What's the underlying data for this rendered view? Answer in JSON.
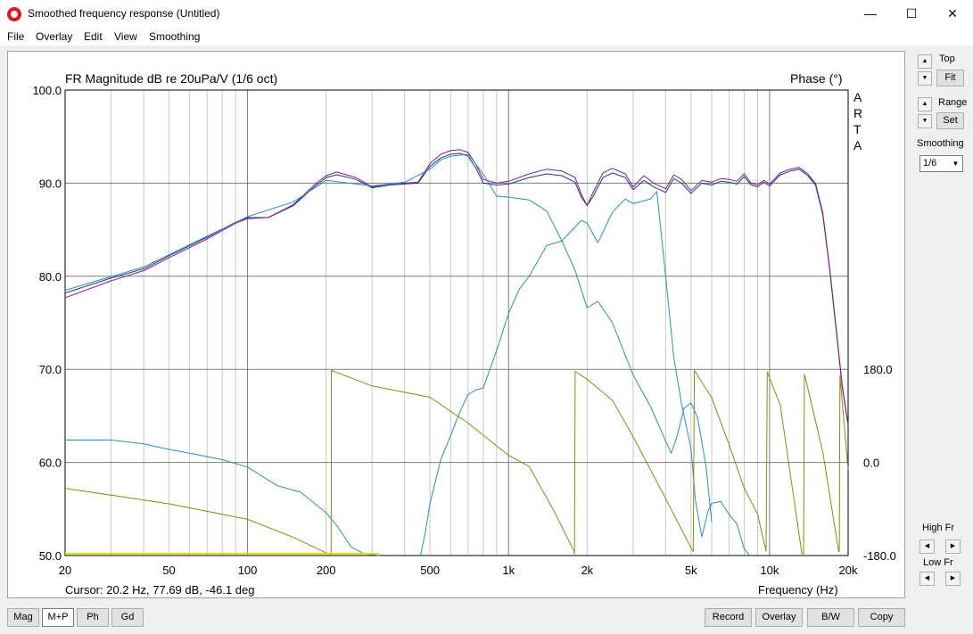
{
  "window": {
    "title": "Smoothed frequency response (Untitled)",
    "minimize_glyph": "—",
    "maximize_glyph": "☐",
    "close_glyph": "✕"
  },
  "menu": [
    "File",
    "Overlay",
    "Edit",
    "View",
    "Smoothing"
  ],
  "side": {
    "top_label": "Top",
    "fit_label": "Fit",
    "range_label": "Range",
    "set_label": "Set",
    "smoothing_label": "Smoothing",
    "smoothing_value": "1/6",
    "high_fr_label": "High Fr",
    "low_fr_label": "Low Fr"
  },
  "buttons_left": [
    "Mag",
    "M+P",
    "Ph",
    "Gd"
  ],
  "buttons_right": [
    "Record",
    "Overlay",
    "B/W",
    "Copy"
  ],
  "chart_data": {
    "type": "line",
    "title": "FR Magnitude dB re 20uPa/V (1/6 oct)",
    "y2_title": "Phase (°)",
    "brand": [
      "A",
      "R",
      "T",
      "A"
    ],
    "xlabel": "Frequency (Hz)",
    "xscale": "log",
    "xlim": [
      20,
      20000
    ],
    "ylim": [
      50,
      100
    ],
    "y2lim": [
      -180,
      180
    ],
    "x_ticks": [
      20,
      50,
      100,
      200,
      500,
      1000,
      2000,
      5000,
      10000,
      20000
    ],
    "x_tick_labels": [
      "20",
      "50",
      "100",
      "200",
      "500",
      "1k",
      "2k",
      "5k",
      "10k",
      "20k"
    ],
    "y_ticks": [
      100,
      90,
      80,
      70,
      60,
      50
    ],
    "y_tick_labels": [
      "100.0",
      "90.0",
      "80.0",
      "70.0",
      "60.0",
      "50.0"
    ],
    "y2_ticks": [
      180,
      0,
      -180
    ],
    "y2_tick_labels": [
      "180.0",
      "0.0",
      "-180.0"
    ],
    "cursor": "Cursor: 20.2 Hz, 77.69 dB, -46.1 deg",
    "colors": {
      "sum": "#1f3a8a",
      "sum2": "#8b1a7a",
      "driver": "#2a8fb8",
      "phase": "#8a8a10",
      "marker": "#e0e000"
    },
    "series": [
      {
        "axis": "y",
        "color": "#1f3a8a",
        "x": [
          20,
          30,
          40,
          50,
          70,
          90,
          100,
          120,
          150,
          180,
          200,
          220,
          260,
          300,
          350,
          400,
          450,
          500,
          550,
          600,
          650,
          700,
          750,
          800,
          900,
          1000,
          1200,
          1400,
          1600,
          1800,
          1900,
          2000,
          2100,
          2300,
          2500,
          2800,
          3000,
          3300,
          3600,
          4000,
          4300,
          4600,
          5000,
          5500,
          6000,
          6500,
          7000,
          7500,
          8000,
          8500,
          9000,
          9500,
          10000,
          11000,
          12000,
          13000,
          14000,
          15000,
          16000,
          17000,
          18000,
          19000,
          20000
        ],
        "values": [
          78.2,
          79.8,
          80.8,
          82.2,
          84.2,
          85.8,
          86.3,
          86.3,
          87.6,
          89.6,
          90.6,
          90.9,
          90.4,
          89.5,
          89.8,
          89.9,
          90.0,
          91.8,
          92.7,
          93.1,
          93.2,
          92.9,
          91.6,
          90.0,
          89.8,
          89.9,
          90.6,
          91.0,
          90.8,
          90.1,
          88.5,
          87.6,
          88.5,
          90.6,
          91.1,
          90.6,
          89.3,
          90.3,
          89.6,
          89.0,
          90.5,
          90.0,
          88.9,
          90.0,
          89.8,
          90.2,
          90.1,
          89.9,
          90.7,
          89.8,
          89.6,
          90.1,
          89.7,
          90.9,
          91.3,
          91.5,
          90.8,
          89.8,
          86.6,
          80.7,
          74.2,
          68.0,
          64.0
        ]
      },
      {
        "axis": "y",
        "color": "#8b1a7a",
        "x": [
          20,
          30,
          40,
          50,
          70,
          90,
          100,
          120,
          150,
          180,
          200,
          220,
          260,
          300,
          350,
          400,
          450,
          500,
          550,
          600,
          650,
          700,
          750,
          800,
          900,
          1000,
          1200,
          1400,
          1600,
          1800,
          1900,
          2000,
          2100,
          2300,
          2500,
          2800,
          3000,
          3300,
          3600,
          4000,
          4300,
          4600,
          5000,
          5500,
          6000,
          6500,
          7000,
          7500,
          8000,
          8500,
          9000,
          9500,
          10000,
          11000,
          12000,
          13000,
          14000,
          15000,
          16000,
          17000,
          18000,
          19000,
          20000
        ],
        "values": [
          77.7,
          79.5,
          80.6,
          82.0,
          84.0,
          85.7,
          86.2,
          86.3,
          87.7,
          89.8,
          90.8,
          91.2,
          90.6,
          89.6,
          89.9,
          90.0,
          90.1,
          92.1,
          93.1,
          93.5,
          93.6,
          93.3,
          92.0,
          90.4,
          90.0,
          90.2,
          91.0,
          91.5,
          91.3,
          90.6,
          88.8,
          87.6,
          88.9,
          91.1,
          91.6,
          91.0,
          89.6,
          90.8,
          90.0,
          89.4,
          90.9,
          90.4,
          89.2,
          90.3,
          90.1,
          90.5,
          90.4,
          90.2,
          91.0,
          90.0,
          89.8,
          90.3,
          89.9,
          91.1,
          91.5,
          91.7,
          91.0,
          90.0,
          86.8,
          80.9,
          74.4,
          68.2,
          64.0
        ]
      },
      {
        "axis": "y",
        "color": "#2a8fb8",
        "x": [
          20,
          30,
          40,
          50,
          60,
          80,
          100,
          130,
          160,
          200,
          220,
          250,
          280,
          300,
          320
        ],
        "values": [
          62.4,
          62.4,
          62.0,
          61.4,
          61.0,
          60.3,
          59.5,
          57.5,
          56.8,
          54.6,
          53.2,
          50.9,
          50.2,
          50.1,
          50.0
        ]
      },
      {
        "axis": "y",
        "color": "#2a8fb8",
        "x": [
          460,
          480,
          500,
          550,
          600,
          650,
          700,
          750,
          800,
          900,
          1000,
          1100,
          1200,
          1400,
          1600,
          1800,
          1900,
          2000,
          2200,
          2500,
          2800,
          3000,
          3500,
          3700,
          4000,
          4300,
          4600,
          5000,
          5200,
          5500,
          5800,
          6000,
          6500,
          7000,
          7500,
          8000,
          8400
        ],
        "values": [
          50.0,
          52.5,
          55.6,
          60.3,
          62.9,
          65.4,
          67.3,
          67.8,
          68.0,
          72.0,
          76.0,
          78.6,
          80.0,
          83.3,
          83.8,
          85.3,
          86.0,
          85.7,
          83.6,
          86.9,
          88.3,
          87.8,
          88.3,
          89.1,
          80.0,
          71.2,
          66.3,
          61.5,
          55.9,
          52.0,
          54.7,
          55.6,
          55.8,
          54.4,
          53.4,
          50.7,
          50.0
        ]
      },
      {
        "axis": "y",
        "color": "#2a8fb8",
        "x": [
          20,
          40,
          70,
          100,
          150,
          200,
          300,
          400,
          500,
          550,
          600,
          700,
          800,
          900,
          1000,
          1200,
          1400,
          1600,
          1800,
          2000,
          2200,
          2500,
          3000,
          3500,
          4000,
          4200,
          4400,
          4700,
          5000,
          5300,
          5700,
          6000
        ],
        "values": [
          78.5,
          81.0,
          84.3,
          86.4,
          88.0,
          90.3,
          89.7,
          90.1,
          91.5,
          92.5,
          92.9,
          93.1,
          91.0,
          88.6,
          88.5,
          88.2,
          87.0,
          83.8,
          80.6,
          76.6,
          77.3,
          75.0,
          69.4,
          66.0,
          62.3,
          61.0,
          62.6,
          65.8,
          66.4,
          64.8,
          59.7,
          53.6
        ]
      },
      {
        "axis": "y2",
        "color": "#8a8a10",
        "x": [
          20,
          50,
          100,
          150,
          200,
          209
        ],
        "values": [
          -50,
          -80,
          -110,
          -145,
          -175,
          -178
        ]
      },
      {
        "axis": "y2",
        "color": "#8a8a10",
        "x": [
          209,
          209.5,
          300,
          500,
          700,
          900,
          1000,
          1200,
          1500,
          1780,
          1790
        ],
        "values": [
          -178,
          178,
          148,
          126,
          76,
          32,
          14,
          -8,
          -96,
          -171,
          -177
        ]
      },
      {
        "axis": "y2",
        "color": "#8a8a10",
        "x": [
          1790,
          1800,
          2000,
          2500,
          3000,
          4000,
          5000,
          5100
        ],
        "values": [
          -177,
          176,
          161,
          120,
          50,
          -70,
          -165,
          -173
        ]
      },
      {
        "axis": "y2",
        "color": "#8a8a10",
        "x": [
          5100,
          5150,
          6000,
          7000,
          8000,
          9000,
          9700
        ],
        "values": [
          -173,
          178,
          125,
          34,
          -50,
          -100,
          -172
        ]
      },
      {
        "axis": "y2",
        "color": "#8a8a10",
        "x": [
          9700,
          9800,
          11000,
          13300,
          13500
        ],
        "values": [
          -172,
          175,
          110,
          -176,
          -177
        ]
      },
      {
        "axis": "y2",
        "color": "#8a8a10",
        "x": [
          13500,
          13600,
          16000,
          18400,
          18500
        ],
        "values": [
          -177,
          171,
          20,
          -172,
          -173
        ]
      },
      {
        "axis": "y2",
        "color": "#8a8a10",
        "x": [
          18500,
          18600,
          20000
        ],
        "values": [
          -173,
          168,
          -15
        ]
      },
      {
        "axis": "y",
        "color": "#e0e000",
        "x": [
          20,
          320
        ],
        "values": [
          50.2,
          50.2
        ]
      }
    ]
  }
}
